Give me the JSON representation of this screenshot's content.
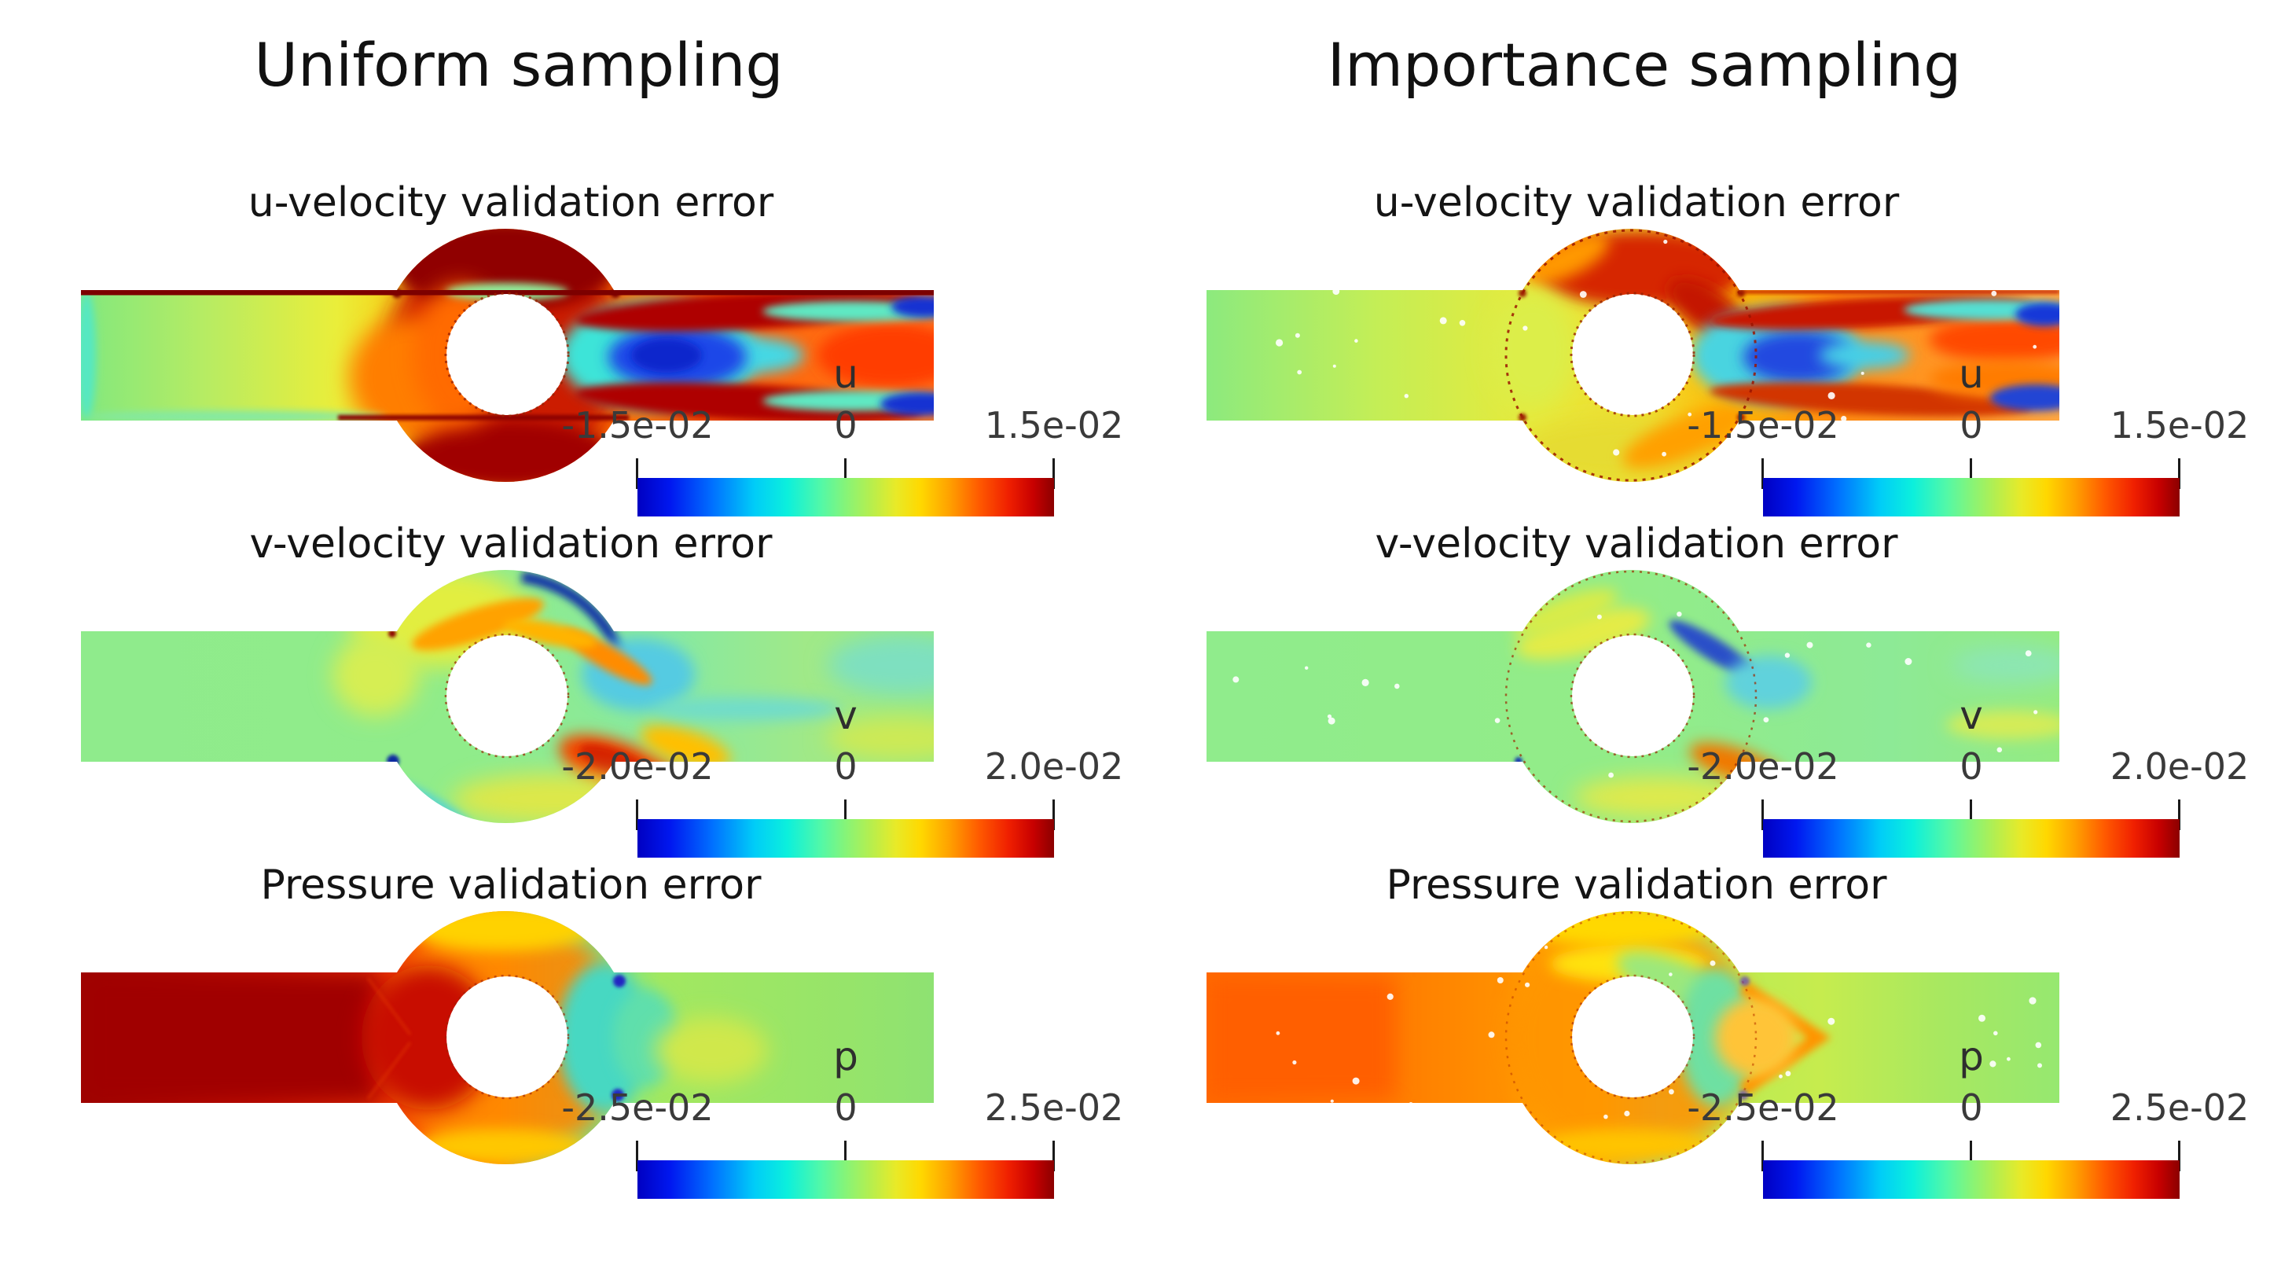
{
  "figure": {
    "background": "#ffffff",
    "columns": [
      {
        "id": "uniform",
        "title": "Uniform sampling"
      },
      {
        "id": "importance",
        "title": "Importance sampling"
      }
    ],
    "rows": [
      {
        "id": "u",
        "subtitle": "u-velocity validation error",
        "field_letter": "u",
        "tick_labels": [
          "-1.5e-02",
          "0",
          "1.5e-02"
        ]
      },
      {
        "id": "v",
        "subtitle": "v-velocity validation error",
        "field_letter": "v",
        "tick_labels": [
          "-2.0e-02",
          "0",
          "2.0e-02"
        ]
      },
      {
        "id": "p",
        "subtitle": "Pressure validation error",
        "field_letter": "p",
        "tick_labels": [
          "-2.5e-02",
          "0",
          "2.5e-02"
        ]
      }
    ]
  },
  "colormap": {
    "name": "jet",
    "stops": [
      [
        "#0000c2",
        0
      ],
      [
        "#0018f0",
        8
      ],
      [
        "#0070ff",
        18
      ],
      [
        "#00ccf8",
        28
      ],
      [
        "#0cf0dc",
        36
      ],
      [
        "#52f8a8",
        44
      ],
      [
        "#86f478",
        50
      ],
      [
        "#b6ee4e",
        56
      ],
      [
        "#e8ea28",
        62
      ],
      [
        "#ffd800",
        68
      ],
      [
        "#ffa000",
        75
      ],
      [
        "#ff5a00",
        82
      ],
      [
        "#f02000",
        89
      ],
      [
        "#c80000",
        95
      ],
      [
        "#8b0000",
        100
      ]
    ]
  },
  "chart_data": [
    {
      "panel": "uniform-u",
      "column": "Uniform sampling",
      "row_title": "u-velocity validation error",
      "type": "heatmap",
      "variable": "u",
      "colormap": "jet",
      "value_min": -0.015,
      "value_max": 0.015,
      "colorbar_ticks": [
        -0.015,
        0,
        0.015
      ],
      "colorbar_tick_labels": [
        "-1.5e-02",
        "0",
        "1.5e-02"
      ],
      "domain_shape": "horizontal channel with circular cavity around a central circular hole",
      "summary": "Large positive (dark red) error along channel walls and around the cavity ring; deep blue negative wake directly downstream of the hole; red streaks extend to the outlet with blue spots at the outlet corners."
    },
    {
      "panel": "importance-u",
      "column": "Importance sampling",
      "row_title": "u-velocity validation error",
      "type": "heatmap",
      "variable": "u",
      "colormap": "jet",
      "value_min": -0.015,
      "value_max": 0.015,
      "colorbar_ticks": [
        -0.015,
        0,
        0.015
      ],
      "colorbar_tick_labels": [
        "-1.5e-02",
        "0",
        "1.5e-02"
      ],
      "domain_shape": "horizontal channel with circular cavity around a central circular hole",
      "summary": "Similar but weaker pattern: yellow-green inlet, red arcs confined to the upper cavity, compact blue wake behind the hole, orange bands toward the outlet; scattered white sample points."
    },
    {
      "panel": "uniform-v",
      "column": "Uniform sampling",
      "row_title": "v-velocity validation error",
      "type": "heatmap",
      "variable": "v",
      "colormap": "jet",
      "value_min": -0.02,
      "value_max": 0.02,
      "colorbar_ticks": [
        -0.02,
        0,
        0.02
      ],
      "colorbar_tick_labels": [
        "-2.0e-02",
        "0",
        "2.0e-02"
      ],
      "domain_shape": "horizontal channel with circular cavity around a central circular hole",
      "summary": "Field near zero (green) almost everywhere; dark blue arc on the upper-right cavity rim, orange arc above the hole, orange-red lobe below-right of the hole, thin dark-red rim arcs."
    },
    {
      "panel": "importance-v",
      "column": "Importance sampling",
      "row_title": "v-velocity validation error",
      "type": "heatmap",
      "variable": "v",
      "colormap": "jet",
      "value_min": -0.02,
      "value_max": 0.02,
      "colorbar_ticks": [
        -0.02,
        0,
        0.02
      ],
      "colorbar_tick_labels": [
        "-2.0e-02",
        "0",
        "2.0e-02"
      ],
      "domain_shape": "horizontal channel with circular cavity around a central circular hole",
      "summary": "Near-zero (green) everywhere with smaller blue and orange lobes around the hole; scattered white sample points."
    },
    {
      "panel": "uniform-p",
      "column": "Uniform sampling",
      "row_title": "Pressure validation error",
      "type": "heatmap",
      "variable": "p",
      "colormap": "jet",
      "value_min": -0.025,
      "value_max": 0.025,
      "colorbar_ticks": [
        -0.025,
        0,
        0.025
      ],
      "colorbar_tick_labels": [
        "-2.5e-02",
        "0",
        "2.5e-02"
      ],
      "domain_shape": "horizontal channel with circular cavity around a central circular hole",
      "summary": "Strong positive (dark red) error over the entire inlet half, orange cavity ring with yellow rim, negative (cyan) crescent just downstream of the hole, near-zero (green) outlet half."
    },
    {
      "panel": "importance-p",
      "column": "Importance sampling",
      "row_title": "Pressure validation error",
      "type": "heatmap",
      "variable": "p",
      "colormap": "jet",
      "value_min": -0.025,
      "value_max": 0.025,
      "colorbar_ticks": [
        -0.025,
        0,
        0.025
      ],
      "colorbar_tick_labels": [
        "-2.5e-02",
        "0",
        "2.5e-02"
      ],
      "domain_shape": "horizontal channel with circular cavity around a central circular hole",
      "summary": "Moderate positive (orange) inlet half, teal-green crescent right of the hole with a small orange chevron, yellow-green outlet half; scattered white sample points."
    }
  ]
}
